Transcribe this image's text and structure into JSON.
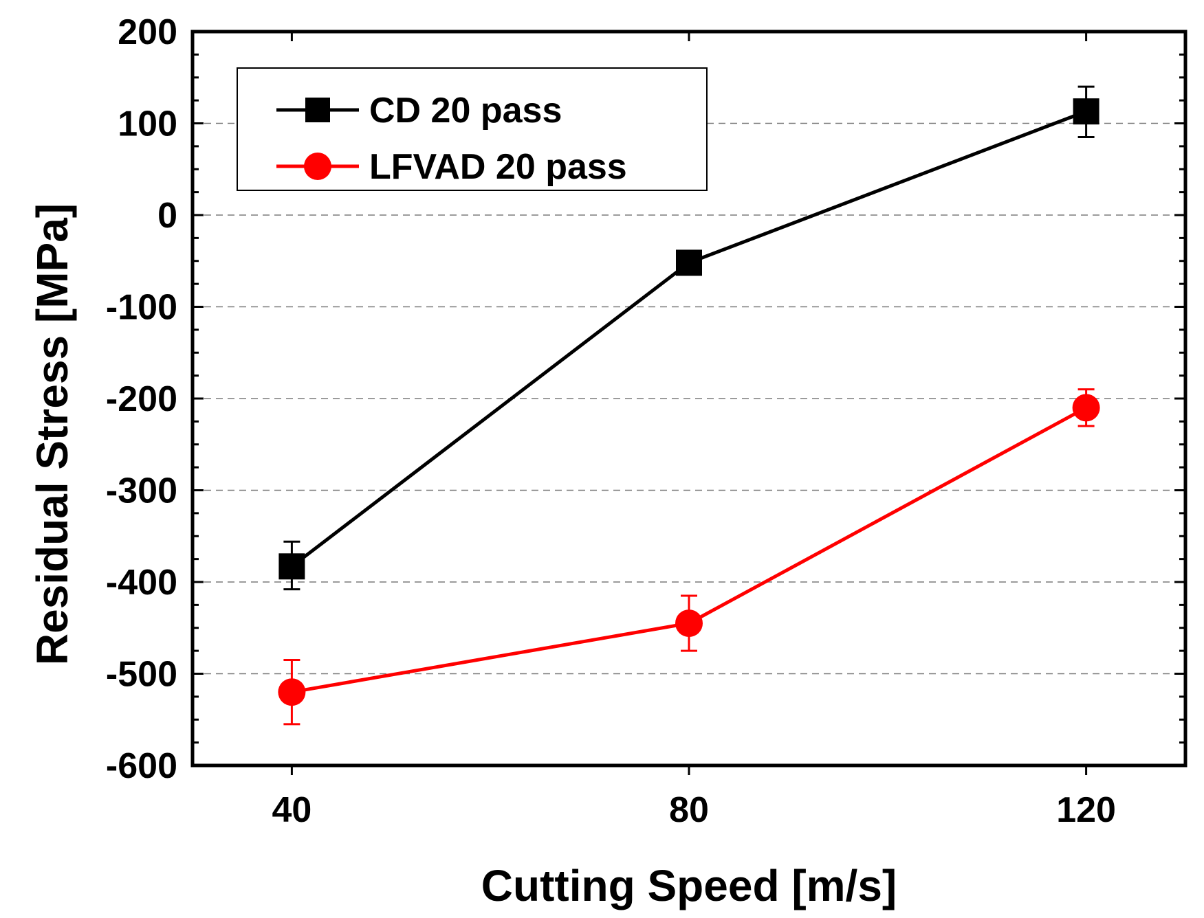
{
  "chart_data": {
    "type": "line",
    "title": "",
    "xlabel": "Cutting Speed [m/s]",
    "ylabel": "Residual Stress [MPa]",
    "x": [
      40,
      80,
      120
    ],
    "x_ticks": [
      "40",
      "80",
      "120"
    ],
    "xlim": [
      30,
      130
    ],
    "ylim": [
      -600,
      200
    ],
    "y_ticks": [
      -600,
      -500,
      -400,
      -300,
      -200,
      -100,
      0,
      100,
      200
    ],
    "y_tick_labels": [
      "-600",
      "-500",
      "-400",
      "-300",
      "-200",
      "-100",
      "0",
      "100",
      "200"
    ],
    "gridlines": "horizontal dashed",
    "legend_position": "top-left",
    "series": [
      {
        "name": "CD 20 pass",
        "color": "#000000",
        "marker": "square",
        "values": [
          -383,
          -52,
          113
        ],
        "err_low": [
          25,
          0,
          28
        ],
        "err_high": [
          27,
          0,
          27
        ]
      },
      {
        "name": "LFVAD 20 pass",
        "color": "#ff0000",
        "marker": "circle",
        "values": [
          -520,
          -445,
          -210
        ],
        "err_low": [
          35,
          30,
          20
        ],
        "err_high": [
          35,
          30,
          20
        ]
      }
    ]
  }
}
